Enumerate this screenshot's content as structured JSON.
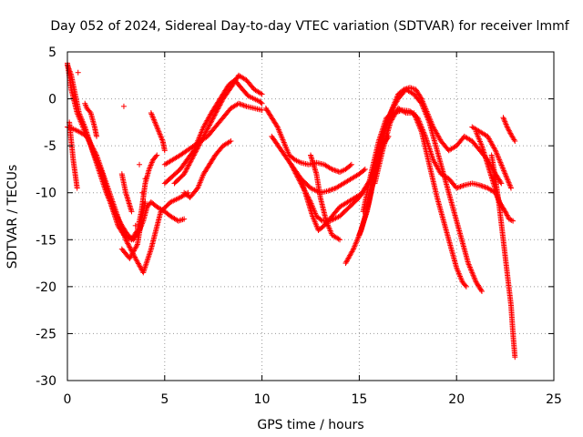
{
  "chart_data": {
    "type": "scatter",
    "title": "Day 052 of 2024, Sidereal Day-to-day VTEC variation (SDTVAR) for receiver lmmf",
    "xlabel": "GPS time / hours",
    "ylabel": "SDTVAR / TECUs",
    "xlim": [
      0,
      25
    ],
    "ylim": [
      -30,
      5
    ],
    "xticks": [
      0,
      5,
      10,
      15,
      20,
      25
    ],
    "yticks": [
      5,
      0,
      -5,
      -10,
      -15,
      -20,
      -25,
      -30
    ],
    "grid": true,
    "marker": "+",
    "marker_color": "#ff0000",
    "series": [
      {
        "name": "trace-1",
        "x": [
          0.0,
          0.2,
          0.4,
          0.6,
          0.9,
          1.3,
          1.8,
          2.2,
          2.6,
          2.9,
          3.1,
          3.3,
          3.6,
          3.8,
          4.0,
          4.2,
          4.4,
          4.6
        ],
        "y": [
          3.6,
          2.5,
          0.5,
          -1.5,
          -3.0,
          -5.5,
          -8.0,
          -11.0,
          -13.5,
          -14.5,
          -14.8,
          -15.0,
          -14.0,
          -12.0,
          -9.0,
          -7.5,
          -6.5,
          -6.0
        ]
      },
      {
        "name": "trace-2",
        "x": [
          0.0,
          0.2,
          0.5,
          0.8,
          1.2,
          1.6,
          2.0,
          2.4,
          2.8,
          3.1,
          3.4,
          3.7,
          3.9,
          4.1,
          4.3,
          4.6,
          5.0,
          5.3,
          5.7,
          6.0
        ],
        "y": [
          3.8,
          1.0,
          -1.5,
          -3.0,
          -5.0,
          -7.5,
          -10.0,
          -12.0,
          -13.5,
          -14.5,
          -15.0,
          -14.0,
          -13.0,
          -11.5,
          -11.0,
          -11.5,
          -12.0,
          -12.5,
          -13.0,
          -12.8
        ]
      },
      {
        "name": "trace-3",
        "x": [
          0.0,
          0.3,
          0.6,
          1.0,
          1.5,
          2.0,
          2.5,
          3.0,
          3.5,
          3.9,
          4.3,
          4.8,
          5.3,
          5.8,
          6.2
        ],
        "y": [
          -3.0,
          -3.2,
          -3.5,
          -4.0,
          -6.0,
          -9.0,
          -12.0,
          -15.0,
          -17.0,
          -18.5,
          -16.0,
          -12.0,
          -11.0,
          -10.5,
          -10.0
        ]
      },
      {
        "name": "trace-4",
        "x": [
          0.1,
          0.2,
          0.3,
          0.4,
          0.5
        ],
        "y": [
          -2.5,
          -4.5,
          -6.5,
          -8.0,
          -9.5
        ]
      },
      {
        "name": "trace-5",
        "x": [
          0.9,
          1.0,
          1.2,
          1.4,
          1.5
        ],
        "y": [
          -0.5,
          -1.0,
          -1.5,
          -3.0,
          -4.0
        ]
      },
      {
        "name": "trace-6",
        "x": [
          4.3,
          4.5,
          4.7,
          4.9,
          5.0
        ],
        "y": [
          -1.5,
          -2.5,
          -3.5,
          -4.5,
          -5.5
        ]
      },
      {
        "name": "trace-7",
        "x": [
          2.8,
          3.0,
          3.3
        ],
        "y": [
          -8.0,
          -10.0,
          -12.0
        ]
      },
      {
        "name": "trace-8",
        "x": [
          5.0,
          5.8,
          6.5,
          7.0,
          7.4,
          7.7,
          8.0,
          8.3,
          8.6,
          8.8,
          9.0,
          9.3,
          9.6,
          9.9,
          10.0
        ],
        "y": [
          -9.0,
          -7.5,
          -5.5,
          -3.0,
          -1.5,
          -0.5,
          0.5,
          1.5,
          2.0,
          1.5,
          1.0,
          0.3,
          0.0,
          -0.3,
          -0.5
        ]
      },
      {
        "name": "trace-9",
        "x": [
          5.0,
          5.8,
          6.5,
          7.2,
          7.6,
          8.0,
          8.4,
          8.8,
          9.2,
          9.6,
          10.0
        ],
        "y": [
          -7.0,
          -6.0,
          -5.0,
          -4.0,
          -3.0,
          -2.0,
          -1.0,
          -0.5,
          -0.8,
          -1.0,
          -1.2
        ]
      },
      {
        "name": "trace-10",
        "x": [
          5.5,
          6.0,
          6.5,
          7.0,
          7.5,
          8.0,
          8.5,
          8.8,
          9.2,
          9.6,
          10.0
        ],
        "y": [
          -9.0,
          -8.0,
          -6.0,
          -4.0,
          -2.0,
          0.0,
          1.5,
          2.5,
          2.0,
          1.0,
          0.5
        ]
      },
      {
        "name": "trace-11",
        "x": [
          6.0,
          6.3,
          6.7,
          7.0,
          7.3,
          7.6,
          8.0,
          8.4
        ],
        "y": [
          -10.0,
          -10.5,
          -9.5,
          -8.0,
          -7.0,
          -6.0,
          -5.0,
          -4.5
        ]
      },
      {
        "name": "trace-12",
        "x": [
          10.2,
          10.5,
          10.8,
          11.1,
          11.4,
          11.7,
          12.0,
          12.4,
          12.8,
          13.2,
          13.6,
          14.0,
          14.3,
          14.6
        ],
        "y": [
          -1.0,
          -2.0,
          -3.0,
          -4.5,
          -6.0,
          -6.5,
          -6.8,
          -7.0,
          -6.8,
          -7.0,
          -7.5,
          -7.8,
          -7.5,
          -7.0
        ]
      },
      {
        "name": "trace-13",
        "x": [
          10.5,
          11.0,
          11.5,
          12.0,
          12.5,
          13.0,
          13.4,
          13.8,
          14.2,
          14.6,
          15.0,
          15.3
        ],
        "y": [
          -4.0,
          -5.5,
          -7.0,
          -8.5,
          -9.5,
          -10.0,
          -9.8,
          -9.5,
          -9.0,
          -8.5,
          -8.0,
          -7.5
        ]
      },
      {
        "name": "trace-14",
        "x": [
          11.5,
          12.0,
          12.5,
          12.8,
          13.1,
          13.5,
          14.0,
          14.5,
          15.0,
          15.3,
          15.6,
          15.9,
          16.2,
          16.5
        ],
        "y": [
          -7.0,
          -9.0,
          -11.0,
          -12.5,
          -13.0,
          -13.0,
          -12.5,
          -11.5,
          -10.5,
          -9.5,
          -8.5,
          -6.5,
          -5.0,
          -4.0
        ]
      },
      {
        "name": "trace-15",
        "x": [
          12.0,
          12.3,
          12.6,
          12.9,
          13.2,
          13.6,
          14.0,
          14.4,
          14.8,
          15.2
        ],
        "y": [
          -8.5,
          -10.5,
          -12.5,
          -14.0,
          -13.5,
          -12.5,
          -11.5,
          -11.0,
          -10.5,
          -10.0
        ]
      },
      {
        "name": "trace-16",
        "x": [
          12.5,
          12.8,
          13.0,
          13.3,
          13.6,
          14.0
        ],
        "y": [
          -6.0,
          -8.0,
          -10.5,
          -13.0,
          -14.5,
          -15.0
        ]
      },
      {
        "name": "trace-17",
        "x": [
          14.3,
          14.7,
          15.1,
          15.5,
          15.9,
          16.3,
          16.7,
          17.0,
          17.3,
          17.6,
          17.9,
          18.2,
          18.5,
          18.8,
          19.2,
          19.6,
          20.0,
          20.4,
          20.8,
          21.2,
          21.6,
          22.0,
          22.3
        ],
        "y": [
          -17.5,
          -16.0,
          -14.0,
          -11.0,
          -7.0,
          -3.5,
          -1.0,
          0.5,
          1.0,
          1.2,
          1.0,
          0.0,
          -1.5,
          -3.0,
          -4.5,
          -5.5,
          -5.0,
          -4.0,
          -4.5,
          -5.5,
          -6.5,
          -8.0,
          -9.0
        ]
      },
      {
        "name": "trace-18",
        "x": [
          15.0,
          15.4,
          15.8,
          16.2,
          16.6,
          17.0,
          17.4,
          17.8,
          18.2,
          18.6,
          19.0,
          19.4,
          19.8,
          20.2,
          20.6,
          21.0,
          21.3
        ],
        "y": [
          -14.5,
          -12.0,
          -8.0,
          -4.0,
          -1.5,
          0.0,
          1.0,
          0.5,
          -0.5,
          -2.5,
          -5.5,
          -8.5,
          -11.5,
          -14.5,
          -17.5,
          -19.5,
          -20.5
        ]
      },
      {
        "name": "trace-19",
        "x": [
          15.8,
          16.2,
          16.6,
          17.0,
          17.4,
          17.8,
          18.2,
          18.6,
          19.0,
          19.4,
          19.8,
          20.0,
          20.3,
          20.5
        ],
        "y": [
          -9.0,
          -5.5,
          -2.5,
          -1.0,
          -1.5,
          -1.5,
          -3.5,
          -7.0,
          -10.5,
          -13.5,
          -16.5,
          -18.0,
          -19.5,
          -20.0
        ]
      },
      {
        "name": "trace-20",
        "x": [
          15.2,
          15.6,
          16.0,
          16.4,
          16.8,
          17.2,
          17.6,
          18.0,
          18.4,
          18.8,
          19.2,
          19.6,
          20.0,
          20.4,
          20.8,
          21.2,
          21.6,
          22.0,
          22.3
        ],
        "y": [
          -12.0,
          -8.0,
          -4.5,
          -2.0,
          -1.5,
          -1.2,
          -1.3,
          -2.0,
          -4.0,
          -6.5,
          -8.0,
          -8.5,
          -9.5,
          -9.2,
          -9.0,
          -9.2,
          -9.5,
          -10.0,
          -11.5
        ]
      },
      {
        "name": "trace-21",
        "x": [
          20.8,
          21.2,
          21.6,
          22.0,
          22.4,
          22.8
        ],
        "y": [
          -3.0,
          -3.5,
          -4.0,
          -5.5,
          -7.5,
          -9.5
        ]
      },
      {
        "name": "trace-22",
        "x": [
          21.0,
          21.3,
          21.6,
          21.9,
          22.2,
          22.5,
          22.7,
          22.9
        ],
        "y": [
          -3.5,
          -5.0,
          -7.0,
          -9.0,
          -11.0,
          -12.0,
          -12.8,
          -13.0
        ]
      },
      {
        "name": "trace-23",
        "x": [
          21.8,
          22.0,
          22.2,
          22.4,
          22.6,
          22.8,
          22.9,
          23.0
        ],
        "y": [
          -6.0,
          -8.5,
          -11.5,
          -15.0,
          -18.5,
          -22.0,
          -25.0,
          -27.5
        ]
      },
      {
        "name": "trace-24",
        "x": [
          22.4,
          22.6,
          22.8,
          23.0
        ],
        "y": [
          -2.0,
          -3.0,
          -3.8,
          -4.5
        ]
      },
      {
        "name": "trace-25",
        "x": [
          2.8,
          3.2,
          3.6,
          3.8,
          4.0
        ],
        "y": [
          -16.0,
          -17.0,
          -15.5,
          -13.0,
          -11.0
        ]
      }
    ],
    "outliers": [
      [
        2.9,
        -0.8
      ],
      [
        0.55,
        2.8
      ],
      [
        3.7,
        -7.0
      ],
      [
        4.0,
        -8.5
      ],
      [
        3.85,
        -10.0
      ],
      [
        3.5,
        -13.5
      ]
    ]
  }
}
